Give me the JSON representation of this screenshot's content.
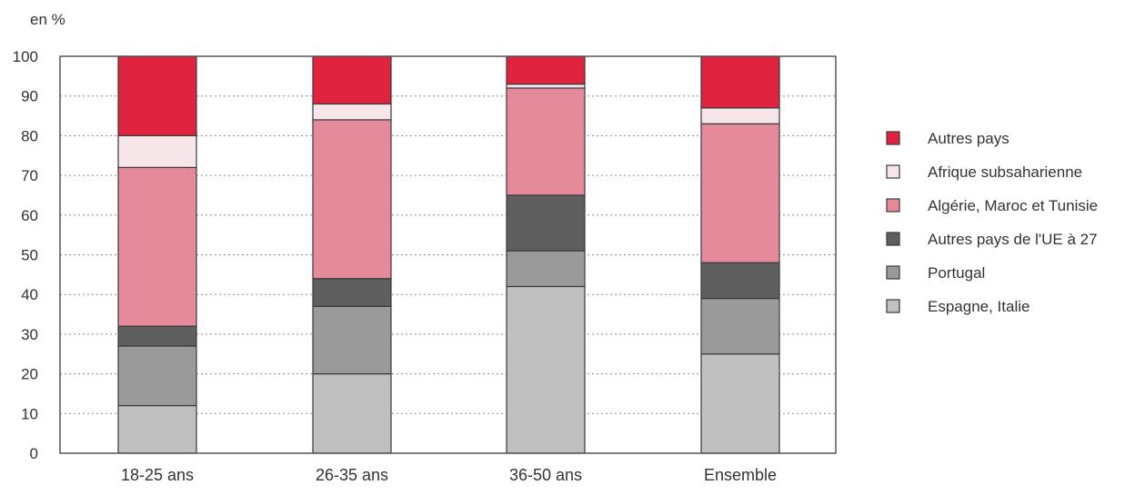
{
  "chart_data": {
    "type": "bar",
    "stacked": true,
    "unit_label": "en %",
    "ylim": [
      0,
      100
    ],
    "y_ticks": [
      0,
      10,
      20,
      30,
      40,
      50,
      60,
      70,
      80,
      90,
      100
    ],
    "grid": "horizontal dotted",
    "legend_position": "right",
    "categories": [
      "18-25 ans",
      "26-35 ans",
      "36-50 ans",
      "Ensemble"
    ],
    "series": [
      {
        "name": "Espagne, Italie",
        "color": "#c0c0c0",
        "values": [
          12,
          20,
          42,
          25
        ]
      },
      {
        "name": "Portugal",
        "color": "#9a9a9a",
        "values": [
          15,
          17,
          9,
          14
        ]
      },
      {
        "name": "Autres pays de l'UE à 27",
        "color": "#5f5f5f",
        "values": [
          5,
          7,
          14,
          9
        ]
      },
      {
        "name": "Algérie, Maroc et Tunisie",
        "color": "#e48a9a",
        "values": [
          40,
          40,
          27,
          35
        ]
      },
      {
        "name": "Afrique subsaharienne",
        "color": "#f6e6e9",
        "values": [
          8,
          4,
          1,
          4
        ]
      },
      {
        "name": "Autres pays",
        "color": "#e0243f",
        "values": [
          20,
          12,
          7,
          13
        ]
      }
    ],
    "legend_order": [
      "Autres pays",
      "Afrique subsaharienne",
      "Algérie, Maroc et Tunisie",
      "Autres pays de l'UE à 27",
      "Portugal",
      "Espagne, Italie"
    ]
  }
}
